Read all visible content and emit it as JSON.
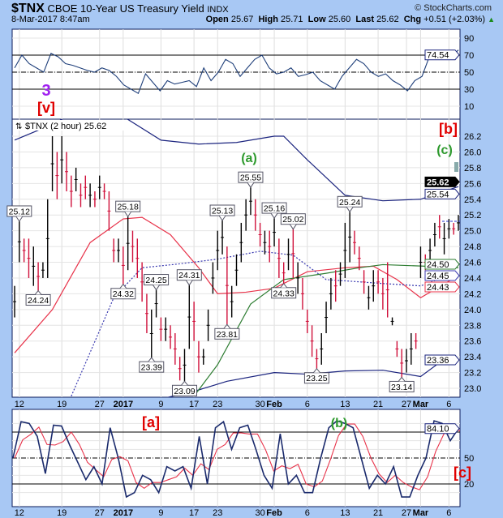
{
  "header": {
    "symbol": "$TNX",
    "name": "CBOE 10-Year US Treasury Yield",
    "exchange": "INDX",
    "datetime": "8-Mar-2017 8:47am",
    "brand": "© StockCharts.com",
    "open_label": "Open",
    "open": "25.67",
    "high_label": "High",
    "high": "25.71",
    "low_label": "Low",
    "low": "25.60",
    "last_label": "Last",
    "last": "25.62",
    "chg_label": "Chg",
    "chg": "+0.51 (+2.03%)",
    "chg_arrow": "▲"
  },
  "colors": {
    "background": "#a8c8f4",
    "up_bar": "#000000",
    "down_bar": "#d0103a",
    "bollinger": "#1a237e",
    "ma_red": "#e8334a",
    "ma_dotted": "#3a3ab0",
    "ma_green": "#2e7d32",
    "rsi": "#1f3f7a",
    "stoch_k": "#1a2a6c",
    "stoch_d": "#e8334a"
  },
  "chart_data": [
    {
      "type": "line",
      "panel": "rsi",
      "ylim": [
        0,
        100
      ],
      "yticks": [
        "90",
        "70",
        "50",
        "30",
        "10"
      ],
      "levels": [
        70,
        50,
        30
      ],
      "last_value": "74.54",
      "values": [
        55,
        70,
        60,
        55,
        50,
        72,
        68,
        60,
        58,
        55,
        52,
        50,
        55,
        52,
        45,
        35,
        30,
        25,
        48,
        38,
        28,
        40,
        36,
        38,
        40,
        33,
        55,
        40,
        50,
        65,
        60,
        45,
        55,
        65,
        70,
        55,
        48,
        50,
        55,
        45,
        47,
        50,
        40,
        35,
        30,
        45,
        55,
        65,
        60,
        50,
        45,
        48,
        40,
        35,
        28,
        40,
        45,
        68,
        70,
        65,
        68,
        76
      ],
      "annotations": [
        {
          "text": "3",
          "color": "#a020f0"
        },
        {
          "text": "[v]",
          "color": "#e00000"
        }
      ]
    },
    {
      "type": "ohlc",
      "panel": "price",
      "legend": "$TNX (2 hour) 25.62",
      "ylim": [
        22.9,
        26.4
      ],
      "yticks": [
        "26.2",
        "26.0",
        "25.8",
        "25.6",
        "25.4",
        "25.2",
        "25.0",
        "24.8",
        "24.6",
        "24.4",
        "24.2",
        "24.0",
        "23.8",
        "23.6",
        "23.4",
        "23.2",
        "23.0"
      ],
      "xticks": [
        {
          "label": "12",
          "bar": 1
        },
        {
          "label": "19",
          "bar": 10
        },
        {
          "label": "27",
          "bar": 18
        },
        {
          "label": "2017",
          "bar": 23,
          "bold": true
        },
        {
          "label": "9",
          "bar": 31
        },
        {
          "label": "17",
          "bar": 38
        },
        {
          "label": "23",
          "bar": 43
        },
        {
          "label": "30",
          "bar": 52
        },
        {
          "label": "Feb",
          "bar": 55,
          "bold": true
        },
        {
          "label": "6",
          "bar": 62
        },
        {
          "label": "13",
          "bar": 70
        },
        {
          "label": "21",
          "bar": 77
        },
        {
          "label": "27",
          "bar": 83
        },
        {
          "label": "Mar",
          "bar": 86,
          "bold": true
        },
        {
          "label": "6",
          "bar": 92
        }
      ],
      "bars": [
        [
          24.3,
          23.9,
          1
        ],
        [
          25.12,
          24.6,
          1
        ],
        [
          24.9,
          24.6,
          0
        ],
        [
          24.9,
          24.4,
          0
        ],
        [
          24.8,
          24.3,
          1
        ],
        [
          24.6,
          24.24,
          0
        ],
        [
          24.6,
          24.4,
          1
        ],
        [
          25.4,
          24.4,
          1
        ],
        [
          26.2,
          25.5,
          1
        ],
        [
          26.0,
          25.4,
          0
        ],
        [
          26.2,
          25.6,
          1
        ],
        [
          26.0,
          25.5,
          0
        ],
        [
          25.7,
          25.3,
          0
        ],
        [
          25.8,
          25.5,
          1
        ],
        [
          25.6,
          25.3,
          0
        ],
        [
          25.7,
          25.4,
          0
        ],
        [
          25.6,
          25.3,
          1
        ],
        [
          25.5,
          25.3,
          0
        ],
        [
          25.7,
          25.4,
          1
        ],
        [
          25.6,
          25.4,
          0
        ],
        [
          25.5,
          25.0,
          0
        ],
        [
          24.9,
          24.6,
          0
        ],
        [
          24.9,
          24.6,
          1
        ],
        [
          24.8,
          24.32,
          0
        ],
        [
          25.18,
          24.5,
          1
        ],
        [
          25.0,
          24.6,
          0
        ],
        [
          24.9,
          24.4,
          0
        ],
        [
          24.6,
          24.1,
          0
        ],
        [
          24.2,
          23.7,
          0
        ],
        [
          24.0,
          23.39,
          1
        ],
        [
          24.25,
          23.9,
          1
        ],
        [
          23.9,
          23.6,
          0
        ],
        [
          23.9,
          23.6,
          1
        ],
        [
          23.8,
          23.5,
          0
        ],
        [
          23.7,
          23.3,
          0
        ],
        [
          23.4,
          23.1,
          0
        ],
        [
          23.5,
          23.09,
          1
        ],
        [
          24.31,
          23.5,
          1
        ],
        [
          24.1,
          23.6,
          0
        ],
        [
          23.6,
          23.2,
          0
        ],
        [
          23.5,
          23.3,
          1
        ],
        [
          24.0,
          23.6,
          1
        ],
        [
          24.6,
          24.2,
          1
        ],
        [
          25.0,
          24.5,
          1
        ],
        [
          25.13,
          24.7,
          1
        ],
        [
          24.8,
          23.81,
          0
        ],
        [
          24.3,
          23.9,
          1
        ],
        [
          24.7,
          24.3,
          1
        ],
        [
          25.1,
          24.6,
          1
        ],
        [
          25.4,
          25.0,
          1
        ],
        [
          25.55,
          25.2,
          1
        ],
        [
          25.4,
          25.0,
          0
        ],
        [
          25.1,
          24.8,
          0
        ],
        [
          25.0,
          24.7,
          1
        ],
        [
          25.0,
          24.6,
          0
        ],
        [
          25.16,
          24.8,
          1
        ],
        [
          24.9,
          24.4,
          0
        ],
        [
          24.6,
          24.33,
          0
        ],
        [
          24.9,
          24.5,
          1
        ],
        [
          25.02,
          24.4,
          0
        ],
        [
          24.6,
          24.2,
          1
        ],
        [
          24.4,
          24.0,
          0
        ],
        [
          24.0,
          23.7,
          0
        ],
        [
          23.8,
          23.4,
          0
        ],
        [
          23.5,
          23.25,
          0
        ],
        [
          23.7,
          23.3,
          1
        ],
        [
          24.1,
          23.7,
          1
        ],
        [
          24.4,
          24.0,
          1
        ],
        [
          24.5,
          24.1,
          0
        ],
        [
          24.6,
          24.3,
          1
        ],
        [
          25.1,
          24.4,
          1
        ],
        [
          25.24,
          24.6,
          1
        ],
        [
          25.0,
          24.7,
          0
        ],
        [
          24.8,
          24.5,
          0
        ],
        [
          24.5,
          24.2,
          0
        ],
        [
          24.3,
          24.0,
          1
        ],
        [
          24.5,
          24.1,
          1
        ],
        [
          24.5,
          24.2,
          0
        ],
        [
          24.4,
          24.0,
          0
        ],
        [
          24.6,
          23.9,
          0
        ],
        [
          23.9,
          23.8,
          1
        ],
        [
          23.6,
          23.4,
          0
        ],
        [
          23.5,
          23.14,
          0
        ],
        [
          23.5,
          23.2,
          1
        ],
        [
          23.7,
          23.3,
          1
        ],
        [
          23.7,
          23.5,
          0
        ],
        [
          24.8,
          24.4,
          1
        ],
        [
          24.7,
          24.5,
          0
        ],
        [
          24.9,
          24.6,
          1
        ],
        [
          25.1,
          24.8,
          1
        ],
        [
          25.2,
          24.9,
          0
        ],
        [
          25.1,
          24.7,
          1
        ],
        [
          25.15,
          24.9,
          1
        ],
        [
          25.1,
          24.95,
          0
        ],
        [
          25.2,
          25.0,
          1
        ]
      ],
      "overlays": [
        {
          "key": "bb_upper",
          "color": "#1a237e",
          "dash": false,
          "points": [
            [
              0,
              26.15
            ],
            [
              8,
              26.35
            ],
            [
              16,
              26.6
            ],
            [
              23,
              26.45
            ],
            [
              31,
              26.15
            ],
            [
              39,
              26.1
            ],
            [
              47,
              26.12
            ],
            [
              55,
              26.2
            ],
            [
              57,
              26.2
            ],
            [
              62,
              25.9
            ],
            [
              70,
              25.45
            ],
            [
              78,
              25.38
            ],
            [
              86,
              25.4
            ],
            [
              94,
              25.56
            ]
          ],
          "last": "25.54"
        },
        {
          "key": "bb_lower",
          "color": "#1a237e",
          "dash": false,
          "points": [
            [
              12,
              22.8
            ],
            [
              30,
              22.85
            ],
            [
              39,
              22.98
            ],
            [
              45,
              23.09
            ],
            [
              55,
              23.2
            ],
            [
              62,
              23.18
            ],
            [
              70,
              23.22
            ],
            [
              78,
              23.23
            ],
            [
              86,
              23.15
            ],
            [
              91,
              23.37
            ],
            [
              94,
              23.36
            ]
          ],
          "last": "23.36"
        },
        {
          "key": "ma_red",
          "color": "#e8334a",
          "dash": false,
          "points": [
            [
              0,
              23.45
            ],
            [
              8,
              24.0
            ],
            [
              16,
              24.85
            ],
            [
              23,
              25.15
            ],
            [
              27,
              25.17
            ],
            [
              33,
              24.95
            ],
            [
              39,
              24.53
            ],
            [
              43,
              24.2
            ],
            [
              49,
              24.22
            ],
            [
              55,
              24.27
            ],
            [
              62,
              24.48
            ],
            [
              70,
              24.53
            ],
            [
              76,
              24.55
            ],
            [
              81,
              24.38
            ],
            [
              86,
              24.15
            ],
            [
              94,
              24.43
            ]
          ],
          "last": "24.43"
        },
        {
          "key": "ma_dotted",
          "color": "#3a3ab0",
          "dash": true,
          "points": [
            [
              12,
              22.9
            ],
            [
              21,
              24.15
            ],
            [
              27,
              24.53
            ],
            [
              35,
              24.58
            ],
            [
              43,
              24.64
            ],
            [
              52,
              24.74
            ],
            [
              59,
              24.69
            ],
            [
              66,
              24.38
            ],
            [
              71,
              24.36
            ],
            [
              78,
              24.33
            ],
            [
              86,
              24.3
            ],
            [
              94,
              24.48
            ]
          ],
          "last": "24.45"
        },
        {
          "key": "ma_green",
          "color": "#2e7d32",
          "dash": false,
          "points": [
            [
              38,
              22.9
            ],
            [
              43,
              23.3
            ],
            [
              50,
              24.07
            ],
            [
              57,
              24.38
            ],
            [
              66,
              24.46
            ],
            [
              73,
              24.53
            ],
            [
              78,
              24.57
            ],
            [
              87,
              24.55
            ],
            [
              94,
              24.53
            ]
          ],
          "last": "24.50"
        }
      ],
      "peak_labels": [
        {
          "text": "25.12",
          "bar": 1,
          "value": 25.12,
          "pos": "above"
        },
        {
          "text": "24.24",
          "bar": 5,
          "value": 24.24,
          "pos": "below"
        },
        {
          "text": "25.18",
          "bar": 24,
          "value": 25.18,
          "pos": "above"
        },
        {
          "text": "24.32",
          "bar": 23,
          "value": 24.32,
          "pos": "below"
        },
        {
          "text": "24.25",
          "bar": 30,
          "value": 24.25,
          "pos": "above"
        },
        {
          "text": "23.39",
          "bar": 29,
          "value": 23.39,
          "pos": "below"
        },
        {
          "text": "24.31",
          "bar": 37,
          "value": 24.31,
          "pos": "above"
        },
        {
          "text": "23.09",
          "bar": 36,
          "value": 23.09,
          "pos": "below"
        },
        {
          "text": "25.13",
          "bar": 44,
          "value": 25.13,
          "pos": "above"
        },
        {
          "text": "23.81",
          "bar": 45,
          "value": 23.81,
          "pos": "below"
        },
        {
          "text": "25.55",
          "bar": 50,
          "value": 25.55,
          "pos": "above"
        },
        {
          "text": "25.16",
          "bar": 55,
          "value": 25.16,
          "pos": "above"
        },
        {
          "text": "25.02",
          "bar": 59,
          "value": 25.02,
          "pos": "above"
        },
        {
          "text": "24.33",
          "bar": 57,
          "value": 24.33,
          "pos": "below"
        },
        {
          "text": "23.25",
          "bar": 64,
          "value": 23.25,
          "pos": "below"
        },
        {
          "text": "25.24",
          "bar": 71,
          "value": 25.24,
          "pos": "above"
        },
        {
          "text": "23.14",
          "bar": 82,
          "value": 23.14,
          "pos": "below"
        }
      ],
      "last_value": "25.62",
      "annotations": [
        {
          "text": "[b]",
          "color": "#e00000"
        },
        {
          "text": "(c)",
          "color": "#2e9a2e"
        },
        {
          "text": "(a)",
          "color": "#2e9a2e"
        }
      ]
    },
    {
      "type": "line",
      "panel": "stochastic",
      "ylim": [
        0,
        100
      ],
      "yticks": [
        "50",
        "20"
      ],
      "levels": [
        80,
        50,
        20
      ],
      "last_value": "84.10",
      "values": [
        50,
        92,
        90,
        75,
        32,
        88,
        87,
        65,
        45,
        25,
        40,
        20,
        85,
        50,
        5,
        10,
        30,
        25,
        10,
        40,
        35,
        40,
        15,
        75,
        20,
        85,
        92,
        60,
        85,
        88,
        60,
        30,
        15,
        78,
        20,
        30,
        10,
        10,
        50,
        85,
        93,
        90,
        85,
        50,
        15,
        30,
        20,
        40,
        5,
        5,
        30,
        50,
        93,
        90,
        70,
        84
      ],
      "annotations": [
        {
          "text": "[a]",
          "color": "#e00000"
        },
        {
          "text": "(b)",
          "color": "#2e9a2e"
        },
        {
          "text": "[c]",
          "color": "#e00000"
        }
      ]
    }
  ]
}
